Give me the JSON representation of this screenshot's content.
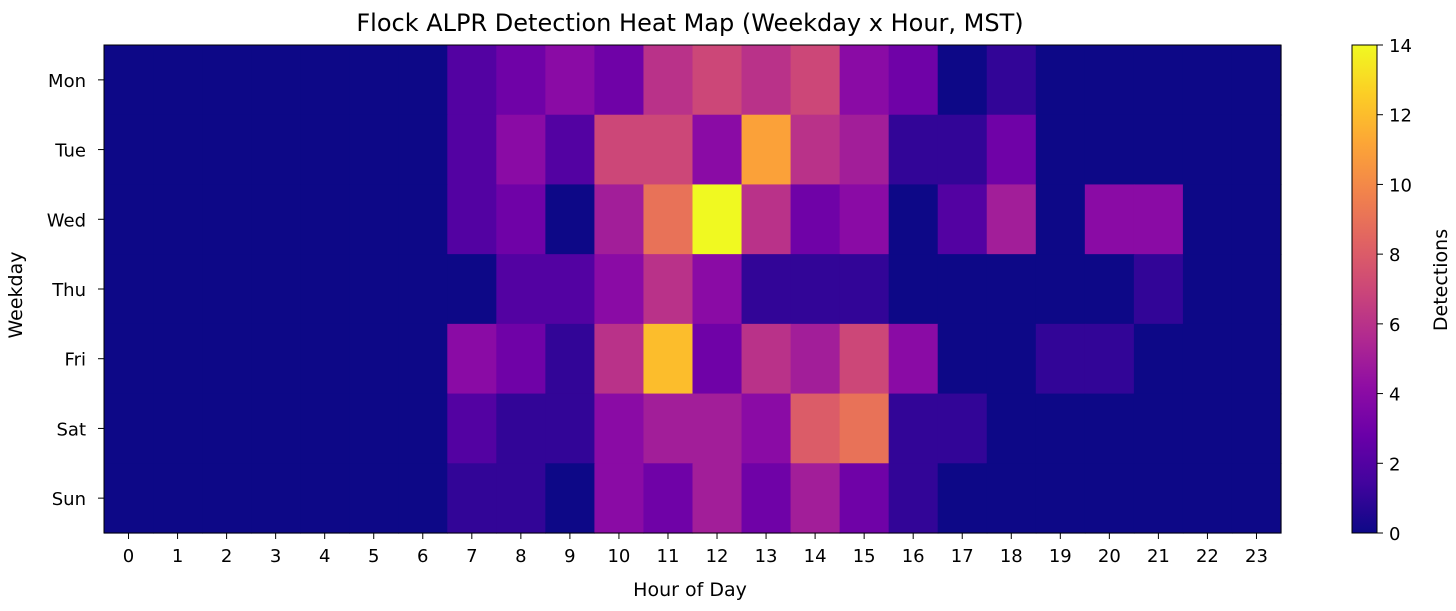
{
  "chart_data": {
    "type": "heatmap",
    "title": "Flock ALPR Detection Heat Map (Weekday x Hour, MST)",
    "xlabel": "Hour of Day",
    "ylabel": "Weekday",
    "x": [
      0,
      1,
      2,
      3,
      4,
      5,
      6,
      7,
      8,
      9,
      10,
      11,
      12,
      13,
      14,
      15,
      16,
      17,
      18,
      19,
      20,
      21,
      22,
      23
    ],
    "y": [
      "Mon",
      "Tue",
      "Wed",
      "Thu",
      "Fri",
      "Sat",
      "Sun"
    ],
    "values": [
      [
        0,
        0,
        0,
        0,
        0,
        0,
        0,
        2,
        3,
        4,
        3,
        6,
        7,
        6,
        7,
        4,
        3,
        0,
        1,
        0,
        0,
        0,
        0,
        0
      ],
      [
        0,
        0,
        0,
        0,
        0,
        0,
        0,
        2,
        4,
        2,
        7,
        7,
        4,
        11,
        6,
        5,
        1,
        1,
        3,
        0,
        0,
        0,
        0,
        0
      ],
      [
        0,
        0,
        0,
        0,
        0,
        0,
        0,
        2,
        3,
        0,
        5,
        9,
        14,
        6,
        3,
        4,
        0,
        2,
        5,
        0,
        4,
        4,
        0,
        0
      ],
      [
        0,
        0,
        0,
        0,
        0,
        0,
        0,
        0,
        2,
        2,
        4,
        6,
        4,
        1,
        1,
        1,
        0,
        0,
        0,
        0,
        0,
        1,
        0,
        0
      ],
      [
        0,
        0,
        0,
        0,
        0,
        0,
        0,
        4,
        3,
        1,
        6,
        12,
        3,
        6,
        5,
        7,
        4,
        0,
        0,
        1,
        1,
        0,
        0,
        0
      ],
      [
        0,
        0,
        0,
        0,
        0,
        0,
        0,
        2,
        1,
        1,
        4,
        5,
        5,
        4,
        8,
        9,
        1,
        1,
        0,
        0,
        0,
        0,
        0,
        0
      ],
      [
        0,
        0,
        0,
        0,
        0,
        0,
        0,
        1,
        1,
        0,
        4,
        3,
        5,
        3,
        5,
        3,
        1,
        0,
        0,
        0,
        0,
        0,
        0,
        0
      ]
    ],
    "colormap": "plasma",
    "colorbar": {
      "label": "Detections",
      "range": [
        0,
        14
      ],
      "ticks": [
        0,
        2,
        4,
        6,
        8,
        10,
        12,
        14
      ]
    }
  }
}
